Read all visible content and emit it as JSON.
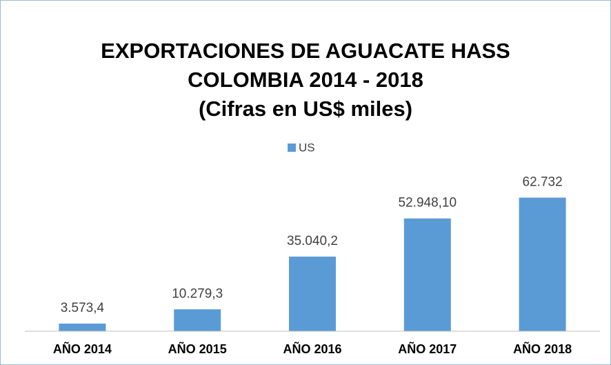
{
  "chart_data": {
    "type": "bar",
    "title": [
      "EXPORTACIONES DE AGUACATE HASS",
      "COLOMBIA 2014 - 2018",
      "(Cifras en US$ miles)"
    ],
    "categories": [
      "AÑO 2014",
      "AÑO 2015",
      "AÑO 2016",
      "AÑO 2017",
      "AÑO 2018"
    ],
    "series": [
      {
        "name": "US",
        "color": "#5b9bd5",
        "values": [
          3573.4,
          10279.3,
          35040.2,
          52948.1,
          62732
        ],
        "value_labels": [
          "3.573,4",
          "10.279,3",
          "35.040,2",
          "52.948,10",
          "62.732"
        ]
      }
    ],
    "ylim": [
      0,
      70000
    ],
    "legend": "top"
  }
}
